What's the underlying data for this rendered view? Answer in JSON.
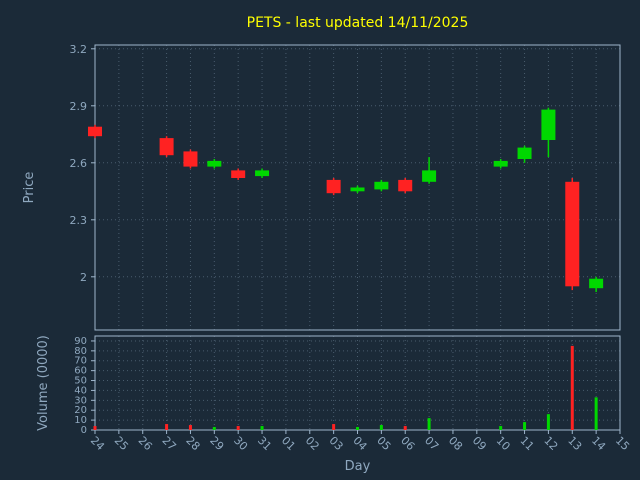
{
  "colors": {
    "background": "#1b2a38",
    "title": "#ffff00",
    "axis_text": "#8fa8bf",
    "spine": "#9fb6cc",
    "grid": "#8fa8bf",
    "up": "#00d800",
    "down": "#ff2222"
  },
  "chart_data": {
    "type": "candlestick+volume",
    "title": "PETS - last updated 14/11/2025",
    "xlabel": "Day",
    "ylabel_price": "Price",
    "ylabel_volume": "Volume (0000)",
    "legend": "none",
    "grid": "dotted",
    "price_ticks": [
      2,
      2.3,
      2.6,
      2.9,
      3.2
    ],
    "price_domain": [
      1.72,
      3.22
    ],
    "volume_ticks": [
      0,
      10,
      20,
      30,
      40,
      50,
      60,
      70,
      80,
      90
    ],
    "volume_domain": [
      0,
      95
    ],
    "days": [
      "24",
      "25",
      "26",
      "27",
      "28",
      "29",
      "30",
      "31",
      "01",
      "02",
      "03",
      "04",
      "05",
      "06",
      "07",
      "08",
      "09",
      "10",
      "11",
      "12",
      "13",
      "14",
      "15"
    ],
    "candles": [
      {
        "day": "24",
        "open": 2.79,
        "close": 2.74,
        "high": 2.8,
        "low": 2.73,
        "volume": 4
      },
      {
        "day": "27",
        "open": 2.73,
        "close": 2.64,
        "high": 2.74,
        "low": 2.63,
        "volume": 6
      },
      {
        "day": "28",
        "open": 2.66,
        "close": 2.58,
        "high": 2.67,
        "low": 2.57,
        "volume": 5
      },
      {
        "day": "29",
        "open": 2.58,
        "close": 2.61,
        "high": 2.62,
        "low": 2.57,
        "volume": 3
      },
      {
        "day": "30",
        "open": 2.56,
        "close": 2.52,
        "high": 2.57,
        "low": 2.51,
        "volume": 4
      },
      {
        "day": "31",
        "open": 2.53,
        "close": 2.56,
        "high": 2.57,
        "low": 2.52,
        "volume": 4
      },
      {
        "day": "03",
        "open": 2.51,
        "close": 2.44,
        "high": 2.52,
        "low": 2.43,
        "volume": 6
      },
      {
        "day": "04",
        "open": 2.45,
        "close": 2.47,
        "high": 2.48,
        "low": 2.44,
        "volume": 3
      },
      {
        "day": "05",
        "open": 2.46,
        "close": 2.5,
        "high": 2.51,
        "low": 2.45,
        "volume": 5
      },
      {
        "day": "06",
        "open": 2.51,
        "close": 2.45,
        "high": 2.52,
        "low": 2.44,
        "volume": 4
      },
      {
        "day": "07",
        "open": 2.5,
        "close": 2.56,
        "high": 2.63,
        "low": 2.49,
        "volume": 12
      },
      {
        "day": "10",
        "open": 2.58,
        "close": 2.61,
        "high": 2.62,
        "low": 2.57,
        "volume": 4
      },
      {
        "day": "11",
        "open": 2.62,
        "close": 2.68,
        "high": 2.69,
        "low": 2.6,
        "volume": 8
      },
      {
        "day": "12",
        "open": 2.72,
        "close": 2.88,
        "high": 2.89,
        "low": 2.63,
        "volume": 16
      },
      {
        "day": "13",
        "open": 2.5,
        "close": 1.95,
        "high": 2.52,
        "low": 1.93,
        "volume": 85
      },
      {
        "day": "14",
        "open": 1.94,
        "close": 1.99,
        "high": 2.0,
        "low": 1.92,
        "volume": 33
      }
    ]
  }
}
